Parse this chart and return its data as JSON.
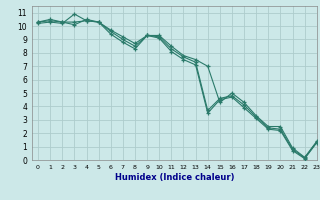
{
  "xlabel": "Humidex (Indice chaleur)",
  "ylabel": "",
  "bg_color": "#cce8e8",
  "grid_color": "#aecccc",
  "line_color": "#2a7a6a",
  "xlim": [
    -0.5,
    23
  ],
  "ylim": [
    0,
    11.5
  ],
  "xticks": [
    0,
    1,
    2,
    3,
    4,
    5,
    6,
    7,
    8,
    9,
    10,
    11,
    12,
    13,
    14,
    15,
    16,
    17,
    18,
    19,
    20,
    21,
    22,
    23
  ],
  "yticks": [
    0,
    1,
    2,
    3,
    4,
    5,
    6,
    7,
    8,
    9,
    10,
    11
  ],
  "line1_x": [
    0,
    1,
    2,
    3,
    4,
    5,
    6,
    7,
    8,
    9,
    10,
    11,
    12,
    13,
    14,
    15,
    16,
    17,
    18,
    19,
    20,
    21,
    22,
    23
  ],
  "line1_y": [
    10.3,
    10.4,
    10.3,
    10.3,
    10.4,
    10.3,
    9.7,
    9.2,
    8.7,
    9.3,
    9.3,
    8.5,
    7.8,
    7.5,
    7.0,
    4.3,
    5.0,
    4.3,
    3.3,
    2.5,
    2.5,
    0.9,
    0.2,
    1.4
  ],
  "line2_x": [
    0,
    1,
    2,
    3,
    4,
    5,
    6,
    7,
    8,
    9,
    10,
    11,
    12,
    13,
    14,
    15,
    16,
    17,
    18,
    19,
    20,
    21,
    22,
    23
  ],
  "line2_y": [
    10.3,
    10.5,
    10.3,
    10.1,
    10.5,
    10.3,
    9.6,
    9.0,
    8.5,
    9.3,
    9.2,
    8.3,
    7.7,
    7.3,
    3.7,
    4.6,
    4.8,
    4.1,
    3.2,
    2.4,
    2.3,
    0.8,
    0.15,
    1.35
  ],
  "line3_x": [
    0,
    1,
    2,
    3,
    4,
    5,
    6,
    7,
    8,
    9,
    10,
    11,
    12,
    13,
    14,
    15,
    16,
    17,
    18,
    19,
    20,
    21,
    22,
    23
  ],
  "line3_y": [
    10.2,
    10.3,
    10.2,
    10.9,
    10.4,
    10.3,
    9.4,
    8.8,
    8.3,
    9.3,
    9.1,
    8.1,
    7.5,
    7.1,
    3.5,
    4.5,
    4.7,
    3.9,
    3.1,
    2.3,
    2.2,
    0.7,
    0.1,
    1.3
  ],
  "xlabel_fontsize": 6,
  "tick_fontsize_x": 4.5,
  "tick_fontsize_y": 5.5,
  "xlabel_color": "#00008b"
}
